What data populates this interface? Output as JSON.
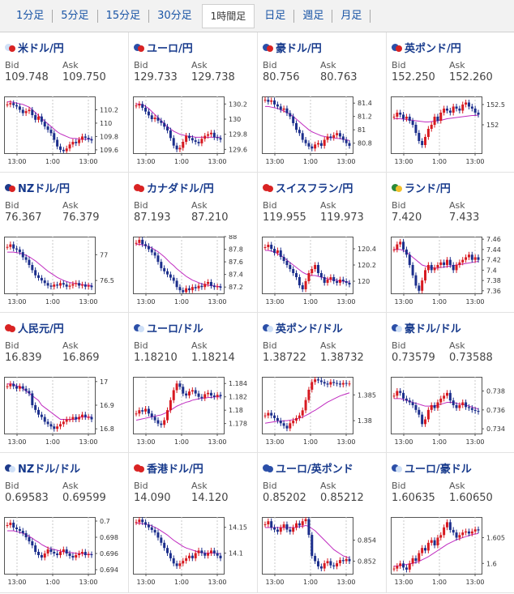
{
  "tabs": [
    "1分足",
    "5分足",
    "15分足",
    "30分足",
    "1時間足",
    "日足",
    "週足",
    "月足"
  ],
  "active_tab": 4,
  "labels": {
    "bid": "Bid",
    "ask": "Ask"
  },
  "x_ticks": [
    "13:00",
    "1:00",
    "13:00"
  ],
  "pairs": [
    {
      "name": "米ドル/円",
      "bid": "109.748",
      "ask": "109.750",
      "flags": [
        "#cfe0f7",
        "#d92323"
      ],
      "yticks": [
        "110.2",
        "110",
        "109.8",
        "109.6"
      ],
      "ylim": [
        109.55,
        110.4
      ],
      "price": [
        110.28,
        110.3,
        110.27,
        110.25,
        110.2,
        110.15,
        110.18,
        110.2,
        110.12,
        110.05,
        110.1,
        110.02,
        109.95,
        109.9,
        109.85,
        109.75,
        109.65,
        109.6,
        109.58,
        109.62,
        109.68,
        109.72,
        109.7,
        109.75,
        109.8,
        109.78,
        109.76,
        109.74
      ],
      "ma": [
        110.32,
        110.32,
        110.31,
        110.3,
        110.29,
        110.28,
        110.26,
        110.24,
        110.2,
        110.16,
        110.11,
        110.07,
        110.03,
        109.99,
        109.95,
        109.91,
        109.87,
        109.84,
        109.82,
        109.8,
        109.78,
        109.77,
        109.77,
        109.76,
        109.76,
        109.76,
        109.76,
        109.76
      ]
    },
    {
      "name": "ユーロ/円",
      "bid": "129.733",
      "ask": "129.738",
      "flags": [
        "#2b4fa8",
        "#d92323"
      ],
      "yticks": [
        "130.2",
        "130",
        "129.8",
        "129.6"
      ],
      "ylim": [
        129.55,
        130.3
      ],
      "price": [
        130.18,
        130.2,
        130.15,
        130.1,
        130.05,
        130.0,
        130.02,
        129.98,
        129.95,
        129.9,
        129.85,
        129.75,
        129.65,
        129.6,
        129.62,
        129.7,
        129.78,
        129.75,
        129.72,
        129.7,
        129.68,
        129.74,
        129.78,
        129.8,
        129.82,
        129.76,
        129.75,
        129.73
      ],
      "ma": [
        130.2,
        130.2,
        130.19,
        130.17,
        130.14,
        130.1,
        130.06,
        130.02,
        129.98,
        129.94,
        129.9,
        129.87,
        129.84,
        129.82,
        129.8,
        129.79,
        129.78,
        129.77,
        129.77,
        129.76,
        129.76,
        129.76,
        129.76,
        129.76,
        129.76,
        129.76,
        129.76,
        129.76
      ]
    },
    {
      "name": "豪ドル/円",
      "bid": "80.756",
      "ask": "80.763",
      "flags": [
        "#2b4fa8",
        "#d92323"
      ],
      "yticks": [
        "81.4",
        "81.2",
        "81",
        "80.8"
      ],
      "ylim": [
        80.65,
        81.5
      ],
      "price": [
        81.45,
        81.42,
        81.44,
        81.38,
        81.35,
        81.3,
        81.32,
        81.25,
        81.2,
        81.1,
        81.0,
        80.95,
        80.85,
        80.8,
        80.75,
        80.72,
        80.78,
        80.8,
        80.76,
        80.85,
        80.9,
        80.88,
        80.92,
        80.95,
        80.9,
        80.85,
        80.8,
        80.76
      ],
      "ma": [
        81.35,
        81.35,
        81.34,
        81.33,
        81.32,
        81.3,
        81.28,
        81.26,
        81.23,
        81.2,
        81.16,
        81.12,
        81.08,
        81.04,
        81.0,
        80.97,
        80.95,
        80.93,
        80.91,
        80.9,
        80.89,
        80.88,
        80.88,
        80.87,
        80.87,
        80.86,
        80.85,
        80.84
      ]
    },
    {
      "name": "英ポンド/円",
      "bid": "152.250",
      "ask": "152.260",
      "flags": [
        "#2b4fa8",
        "#d92323"
      ],
      "yticks": [
        "152.5",
        "152"
      ],
      "ylim": [
        151.3,
        152.7
      ],
      "price": [
        152.2,
        152.3,
        152.25,
        152.15,
        152.2,
        152.1,
        152.0,
        151.8,
        151.6,
        151.5,
        151.7,
        151.9,
        152.0,
        152.2,
        152.1,
        152.3,
        152.4,
        152.35,
        152.3,
        152.45,
        152.4,
        152.35,
        152.5,
        152.55,
        152.45,
        152.4,
        152.3,
        152.25
      ],
      "ma": [
        152.15,
        152.15,
        152.15,
        152.14,
        152.13,
        152.12,
        152.11,
        152.1,
        152.09,
        152.08,
        152.07,
        152.07,
        152.08,
        152.09,
        152.1,
        152.11,
        152.13,
        152.15,
        152.16,
        152.17,
        152.18,
        152.19,
        152.2,
        152.21,
        152.22,
        152.23,
        152.23,
        152.24
      ]
    },
    {
      "name": "NZドル/円",
      "bid": "76.367",
      "ask": "76.379",
      "flags": [
        "#1d3a8a",
        "#d92323"
      ],
      "yticks": [
        "77",
        "76.5"
      ],
      "ylim": [
        76.25,
        77.35
      ],
      "price": [
        77.15,
        77.2,
        77.12,
        77.1,
        77.05,
        76.95,
        76.9,
        76.8,
        76.7,
        76.6,
        76.55,
        76.5,
        76.45,
        76.4,
        76.38,
        76.42,
        76.4,
        76.45,
        76.42,
        76.38,
        76.4,
        76.43,
        76.45,
        76.4,
        76.42,
        76.38,
        76.4,
        76.37
      ],
      "ma": [
        77.05,
        77.05,
        77.05,
        77.04,
        77.03,
        77.01,
        76.99,
        76.96,
        76.92,
        76.88,
        76.83,
        76.78,
        76.73,
        76.68,
        76.64,
        76.6,
        76.56,
        76.53,
        76.5,
        76.48,
        76.46,
        76.45,
        76.44,
        76.43,
        76.42,
        76.41,
        76.41,
        76.4
      ]
    },
    {
      "name": "カナダドル/円",
      "bid": "87.193",
      "ask": "87.210",
      "flags": [
        "#d92323",
        "#d92323"
      ],
      "yticks": [
        "88",
        "87.8",
        "87.6",
        "87.4",
        "87.2"
      ],
      "ylim": [
        87.1,
        88.0
      ],
      "price": [
        87.9,
        87.95,
        87.88,
        87.85,
        87.8,
        87.75,
        87.7,
        87.6,
        87.5,
        87.45,
        87.4,
        87.35,
        87.3,
        87.2,
        87.15,
        87.12,
        87.18,
        87.15,
        87.2,
        87.18,
        87.22,
        87.2,
        87.25,
        87.28,
        87.22,
        87.2,
        87.21,
        87.19
      ],
      "ma": [
        87.88,
        87.88,
        87.87,
        87.86,
        87.84,
        87.82,
        87.79,
        87.76,
        87.72,
        87.68,
        87.63,
        87.58,
        87.54,
        87.49,
        87.45,
        87.41,
        87.37,
        87.34,
        87.31,
        87.29,
        87.27,
        87.25,
        87.24,
        87.23,
        87.22,
        87.22,
        87.21,
        87.21
      ]
    },
    {
      "name": "スイスフラン/円",
      "bid": "119.955",
      "ask": "119.973",
      "flags": [
        "#d92323",
        "#d92323"
      ],
      "yticks": [
        "120.4",
        "120.2",
        "120"
      ],
      "ylim": [
        119.85,
        120.55
      ],
      "price": [
        120.42,
        120.45,
        120.4,
        120.35,
        120.38,
        120.3,
        120.25,
        120.2,
        120.15,
        120.1,
        120.05,
        119.95,
        119.9,
        120.0,
        120.1,
        120.15,
        120.2,
        120.1,
        120.05,
        119.98,
        120.02,
        120.05,
        120.0,
        119.98,
        120.02,
        120.0,
        119.98,
        119.96
      ],
      "ma": [
        120.38,
        120.38,
        120.37,
        120.36,
        120.34,
        120.32,
        120.29,
        120.26,
        120.23,
        120.2,
        120.17,
        120.14,
        120.11,
        120.09,
        120.08,
        120.07,
        120.07,
        120.06,
        120.05,
        120.04,
        120.03,
        120.02,
        120.02,
        120.01,
        120.0,
        120.0,
        119.99,
        119.99
      ]
    },
    {
      "name": "ランド/円",
      "bid": "7.420",
      "ask": "7.433",
      "flags": [
        "#2a8a3a",
        "#f2c12e"
      ],
      "yticks": [
        "7.46",
        "7.44",
        "7.42",
        "7.4",
        "7.38",
        "7.36"
      ],
      "ylim": [
        7.355,
        7.465
      ],
      "price": [
        7.44,
        7.45,
        7.455,
        7.44,
        7.43,
        7.41,
        7.39,
        7.37,
        7.36,
        7.38,
        7.4,
        7.41,
        7.4,
        7.405,
        7.41,
        7.415,
        7.41,
        7.42,
        7.41,
        7.4,
        7.41,
        7.415,
        7.42,
        7.425,
        7.43,
        7.42,
        7.425,
        7.42
      ],
      "ma": [
        7.44,
        7.44,
        7.44,
        7.438,
        7.435,
        7.43,
        7.425,
        7.42,
        7.415,
        7.41,
        7.408,
        7.406,
        7.405,
        7.404,
        7.404,
        7.405,
        7.406,
        7.407,
        7.408,
        7.409,
        7.41,
        7.411,
        7.412,
        7.413,
        7.414,
        7.415,
        7.416,
        7.417
      ]
    },
    {
      "name": "人民元/円",
      "bid": "16.839",
      "ask": "16.869",
      "flags": [
        "#d92323",
        "#d92323"
      ],
      "yticks": [
        "17",
        "16.9",
        "16.8"
      ],
      "ylim": [
        16.78,
        17.02
      ],
      "price": [
        16.98,
        16.99,
        16.98,
        16.97,
        16.98,
        16.97,
        16.96,
        16.95,
        16.9,
        16.88,
        16.86,
        16.85,
        16.83,
        16.82,
        16.81,
        16.8,
        16.81,
        16.82,
        16.83,
        16.84,
        16.84,
        16.85,
        16.84,
        16.85,
        16.86,
        16.85,
        16.85,
        16.84
      ],
      "ma": [
        16.99,
        16.99,
        16.99,
        16.98,
        16.98,
        16.97,
        16.96,
        16.95,
        16.94,
        16.93,
        16.92,
        16.9,
        16.89,
        16.88,
        16.87,
        16.86,
        16.85,
        16.84,
        16.84,
        16.84,
        16.84,
        16.84,
        16.84,
        16.85,
        16.85,
        16.85,
        16.85,
        16.85
      ]
    },
    {
      "name": "ユーロ/ドル",
      "bid": "1.18210",
      "ask": "1.18214",
      "flags": [
        "#2b4fa8",
        "#cfe0f7"
      ],
      "yticks": [
        "1.184",
        "1.182",
        "1.18",
        "1.178"
      ],
      "ylim": [
        1.1765,
        1.185
      ],
      "price": [
        1.1795,
        1.18,
        1.1798,
        1.1802,
        1.1795,
        1.179,
        1.1785,
        1.178,
        1.1778,
        1.1785,
        1.18,
        1.1815,
        1.183,
        1.184,
        1.1835,
        1.1825,
        1.1822,
        1.1828,
        1.183,
        1.1825,
        1.182,
        1.1818,
        1.1824,
        1.1826,
        1.1822,
        1.182,
        1.1823,
        1.1821
      ],
      "ma": [
        1.1785,
        1.1786,
        1.1787,
        1.1788,
        1.1789,
        1.179,
        1.1791,
        1.1792,
        1.1793,
        1.1795,
        1.1797,
        1.18,
        1.1803,
        1.1806,
        1.1808,
        1.181,
        1.1812,
        1.1813,
        1.1815,
        1.1816,
        1.1817,
        1.1818,
        1.1818,
        1.1819,
        1.1819,
        1.182,
        1.182,
        1.182
      ]
    },
    {
      "name": "英ポンド/ドル",
      "bid": "1.38722",
      "ask": "1.38732",
      "flags": [
        "#2b4fa8",
        "#cfe0f7"
      ],
      "yticks": [
        "1.385",
        "1.38"
      ],
      "ylim": [
        1.3775,
        1.3885
      ],
      "price": [
        1.381,
        1.3815,
        1.381,
        1.3805,
        1.38,
        1.3795,
        1.379,
        1.3785,
        1.3795,
        1.38,
        1.3805,
        1.381,
        1.382,
        1.384,
        1.386,
        1.3875,
        1.388,
        1.3878,
        1.3875,
        1.3872,
        1.387,
        1.3875,
        1.3873,
        1.3872,
        1.387,
        1.3873,
        1.3872,
        1.3872
      ],
      "ma": [
        1.3795,
        1.3796,
        1.3797,
        1.3798,
        1.3799,
        1.3799,
        1.38,
        1.38,
        1.3801,
        1.3802,
        1.3803,
        1.3805,
        1.3807,
        1.381,
        1.3813,
        1.3817,
        1.382,
        1.3824,
        1.3828,
        1.3832,
        1.3836,
        1.3839,
        1.3842,
        1.3845,
        1.3848,
        1.385,
        1.3852,
        1.3854
      ]
    },
    {
      "name": "豪ドル/ドル",
      "bid": "0.73579",
      "ask": "0.73588",
      "flags": [
        "#2b4fa8",
        "#cfe0f7"
      ],
      "yticks": [
        "0.738",
        "0.736",
        "0.734"
      ],
      "ylim": [
        0.7335,
        0.7395
      ],
      "price": [
        0.7375,
        0.738,
        0.7378,
        0.7372,
        0.737,
        0.7368,
        0.7365,
        0.736,
        0.7355,
        0.7345,
        0.735,
        0.736,
        0.7365,
        0.7362,
        0.7368,
        0.7372,
        0.7375,
        0.7378,
        0.737,
        0.7365,
        0.7362,
        0.7365,
        0.7368,
        0.7363,
        0.7362,
        0.736,
        0.7359,
        0.7358
      ],
      "ma": [
        0.7372,
        0.7372,
        0.7372,
        0.7371,
        0.737,
        0.7369,
        0.7368,
        0.7367,
        0.7366,
        0.7365,
        0.7364,
        0.7364,
        0.7364,
        0.7364,
        0.7365,
        0.7366,
        0.7367,
        0.7368,
        0.7368,
        0.7368,
        0.7367,
        0.7366,
        0.7366,
        0.7365,
        0.7364,
        0.7363,
        0.7362,
        0.7361
      ]
    },
    {
      "name": "NZドル/ドル",
      "bid": "0.69583",
      "ask": "0.69599",
      "flags": [
        "#1d3a8a",
        "#cfe0f7"
      ],
      "yticks": [
        "0.7",
        "0.698",
        "0.696",
        "0.694"
      ],
      "ylim": [
        0.6935,
        0.7005
      ],
      "price": [
        0.6995,
        0.6998,
        0.6992,
        0.699,
        0.6988,
        0.6985,
        0.698,
        0.6975,
        0.697,
        0.6962,
        0.6958,
        0.6955,
        0.696,
        0.6965,
        0.6962,
        0.696,
        0.6958,
        0.6962,
        0.6965,
        0.696,
        0.6957,
        0.6955,
        0.6958,
        0.696,
        0.6962,
        0.6958,
        0.6959,
        0.6958
      ],
      "ma": [
        0.6988,
        0.6988,
        0.6988,
        0.6987,
        0.6986,
        0.6985,
        0.6983,
        0.6981,
        0.6979,
        0.6976,
        0.6974,
        0.6971,
        0.6969,
        0.6967,
        0.6966,
        0.6965,
        0.6964,
        0.6963,
        0.6962,
        0.6962,
        0.6961,
        0.6961,
        0.696,
        0.696,
        0.696,
        0.6959,
        0.6959,
        0.6959
      ]
    },
    {
      "name": "香港ドル/円",
      "bid": "14.090",
      "ask": "14.120",
      "flags": [
        "#d92323",
        "#d92323"
      ],
      "yticks": [
        "14.15",
        "14.1"
      ],
      "ylim": [
        14.06,
        14.17
      ],
      "price": [
        14.16,
        14.165,
        14.16,
        14.155,
        14.15,
        14.145,
        14.14,
        14.13,
        14.12,
        14.11,
        14.1,
        14.09,
        14.08,
        14.075,
        14.08,
        14.085,
        14.09,
        14.095,
        14.09,
        14.1,
        14.105,
        14.1,
        14.095,
        14.1,
        14.105,
        14.1,
        14.095,
        14.09
      ],
      "ma": [
        14.158,
        14.158,
        14.157,
        14.156,
        14.155,
        14.153,
        14.15,
        14.147,
        14.143,
        14.139,
        14.135,
        14.13,
        14.125,
        14.121,
        14.117,
        14.113,
        14.11,
        14.108,
        14.106,
        14.104,
        14.102,
        14.101,
        14.1,
        14.1,
        14.1,
        14.1,
        14.099,
        14.099
      ]
    },
    {
      "name": "ユーロ/英ポンド",
      "bid": "0.85202",
      "ask": "0.85212",
      "flags": [
        "#2b4fa8",
        "#2b4fa8"
      ],
      "yticks": [
        "0.854",
        "0.852"
      ],
      "ylim": [
        0.8508,
        0.8562
      ],
      "price": [
        0.8555,
        0.8558,
        0.8552,
        0.855,
        0.8548,
        0.8552,
        0.8555,
        0.855,
        0.8548,
        0.8552,
        0.8556,
        0.8554,
        0.8558,
        0.856,
        0.8545,
        0.8525,
        0.852,
        0.8515,
        0.8513,
        0.8518,
        0.852,
        0.8516,
        0.8515,
        0.8518,
        0.8521,
        0.852,
        0.8522,
        0.852
      ],
      "ma": [
        0.8552,
        0.8552,
        0.8552,
        0.8552,
        0.8552,
        0.8552,
        0.8552,
        0.8552,
        0.8552,
        0.8552,
        0.8552,
        0.8553,
        0.8553,
        0.8554,
        0.8553,
        0.8551,
        0.8549,
        0.8546,
        0.8543,
        0.854,
        0.8537,
        0.8534,
        0.8531,
        0.8529,
        0.8527,
        0.8525,
        0.8524,
        0.8523
      ]
    },
    {
      "name": "ユーロ/豪ドル",
      "bid": "1.60635",
      "ask": "1.60650",
      "flags": [
        "#2b4fa8",
        "#cfe0f7"
      ],
      "yticks": [
        "1.605",
        "1.6"
      ],
      "ylim": [
        1.598,
        1.609
      ],
      "price": [
        1.599,
        1.5995,
        1.6,
        1.5992,
        1.5988,
        1.6,
        1.601,
        1.6005,
        1.602,
        1.603,
        1.6025,
        1.604,
        1.6045,
        1.6035,
        1.605,
        1.6055,
        1.607,
        1.608,
        1.6065,
        1.606,
        1.605,
        1.6055,
        1.606,
        1.6062,
        1.6058,
        1.6062,
        1.6066,
        1.6064
      ],
      "ma": [
        1.5995,
        1.5995,
        1.5996,
        1.5997,
        1.5998,
        1.5999,
        1.6,
        1.6002,
        1.6004,
        1.6007,
        1.601,
        1.6013,
        1.6017,
        1.6021,
        1.6025,
        1.6029,
        1.6033,
        1.6037,
        1.604,
        1.6043,
        1.6046,
        1.6048,
        1.605,
        1.6052,
        1.6054,
        1.6056,
        1.6057,
        1.6058
      ]
    }
  ]
}
